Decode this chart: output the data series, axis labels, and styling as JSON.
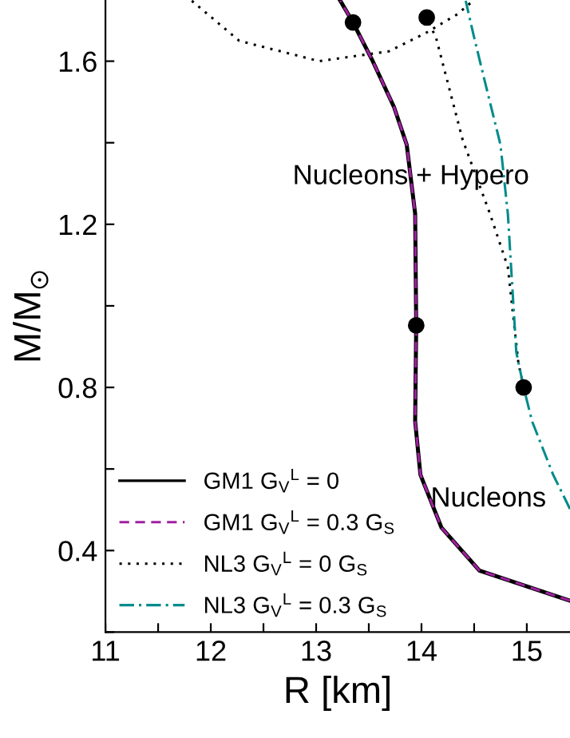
{
  "chart_data": {
    "type": "line",
    "xlabel": "R [km]",
    "ylabel": "M/M$_{⊙}$",
    "xlim": [
      11,
      15.41
    ],
    "ylim": [
      0.2,
      1.75
    ],
    "xticks": [
      11,
      {
        "value": 11.5,
        "label": null
      },
      12,
      {
        "value": 12.5,
        "label": null
      },
      13,
      {
        "value": 13.5,
        "label": null
      },
      14,
      {
        "value": 14.5,
        "label": null
      },
      15
    ],
    "yticks": [
      {
        "value": 0.2,
        "label": null
      },
      0.4,
      {
        "value": 0.6,
        "label": null
      },
      0.8,
      {
        "value": 1.0,
        "label": null
      },
      1.2,
      {
        "value": 1.4,
        "label": null
      },
      1.6
    ],
    "legend": "bottom left",
    "grid": false,
    "annotations": [
      "Nucleons + Hypero",
      "Nucleons"
    ],
    "series": [
      {
        "name": "GM1 G$_{V}$$^{L}$ = 0",
        "color": "#000000",
        "line_style": "solid",
        "x": [
          15.41,
          14.55,
          14.19,
          13.99,
          13.94,
          13.95,
          13.94,
          13.86,
          13.74,
          13.53,
          13.35,
          13.23
        ],
        "values": [
          0.277,
          0.351,
          0.456,
          0.586,
          0.717,
          0.952,
          1.226,
          1.395,
          1.487,
          1.604,
          1.695,
          1.748
        ]
      },
      {
        "name": "GM1 G$_{V}$$^{L}$ = 0.3 G$_{S}$",
        "color": "#a020a0",
        "line_style": "dashed",
        "x": [
          15.41,
          14.55,
          14.19,
          13.99,
          13.94,
          13.95,
          13.94,
          13.86,
          13.74,
          13.53,
          13.35,
          13.23
        ],
        "values": [
          0.277,
          0.351,
          0.456,
          0.586,
          0.717,
          0.952,
          1.226,
          1.395,
          1.487,
          1.604,
          1.695,
          1.748
        ]
      },
      {
        "name": "NL3 G$_{V}$$^{L}$ = 0 G$_{S}$",
        "color": "#000000",
        "line_style": "dotted",
        "x": [
          14.97,
          14.92,
          14.82,
          14.65,
          14.39,
          14.14,
          14.05,
          null,
          11.82,
          12.27,
          13.03,
          13.69,
          14.04,
          14.34,
          14.49
        ],
        "values": [
          0.8,
          0.86,
          1.095,
          1.226,
          1.408,
          1.656,
          1.707,
          null,
          1.748,
          1.65,
          1.6,
          1.624,
          1.669,
          1.715,
          1.748
        ]
      },
      {
        "name": "NL3 G$_{V}$$^{L}$ = 0.3 G$_{S}$",
        "color": "#008b8b",
        "line_style": "dashdot",
        "x": [
          15.41,
          15.25,
          15.05,
          14.97,
          14.9,
          14.82,
          14.75,
          14.6,
          14.49,
          14.42
        ],
        "values": [
          0.502,
          0.586,
          0.717,
          0.8,
          0.887,
          1.226,
          1.395,
          1.552,
          1.669,
          1.748
        ]
      },
      {
        "type": "scatter",
        "color": "#000000",
        "marker": "circle",
        "x": [
          13.95,
          13.35,
          14.05,
          14.97
        ],
        "values": [
          0.952,
          1.695,
          1.707,
          0.8
        ]
      }
    ]
  }
}
